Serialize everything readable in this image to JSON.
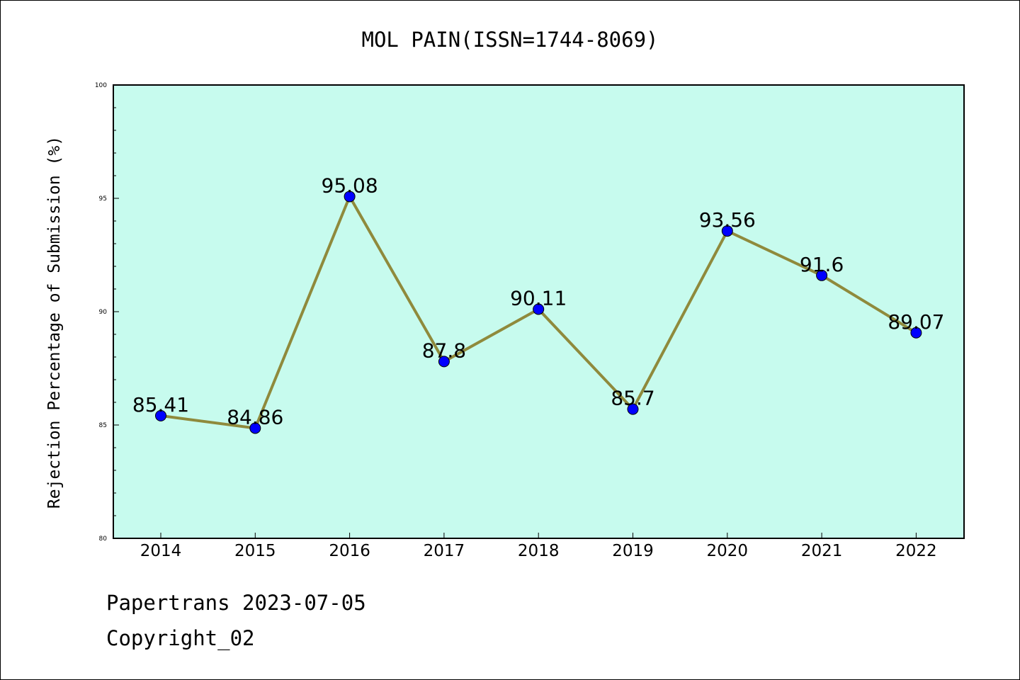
{
  "chart_data": {
    "type": "line",
    "title": "MOL PAIN(ISSN=1744-8069)",
    "xlabel": "",
    "ylabel": "Rejection Percentage of Submission (%)",
    "categories": [
      "2014",
      "2015",
      "2016",
      "2017",
      "2018",
      "2019",
      "2020",
      "2021",
      "2022"
    ],
    "series": [
      {
        "values": [
          85.41,
          84.86,
          95.08,
          87.8,
          90.11,
          85.7,
          93.56,
          91.6,
          89.07
        ],
        "labels": [
          "85.41",
          "84.86",
          "95.08",
          "87.8",
          "90.11",
          "85.7",
          "93.56",
          "91.6",
          "89.07"
        ]
      }
    ],
    "ylim": [
      80,
      100
    ],
    "yticks": [
      "80",
      "85",
      "90",
      "95",
      "100"
    ],
    "grid": false,
    "colors": {
      "plot_background": "#c7fbee",
      "line": "#8f8a3c",
      "marker": "#0000ff"
    }
  },
  "footer": {
    "line1": "Papertrans 2023-07-05",
    "line2": "Copyright_02"
  }
}
